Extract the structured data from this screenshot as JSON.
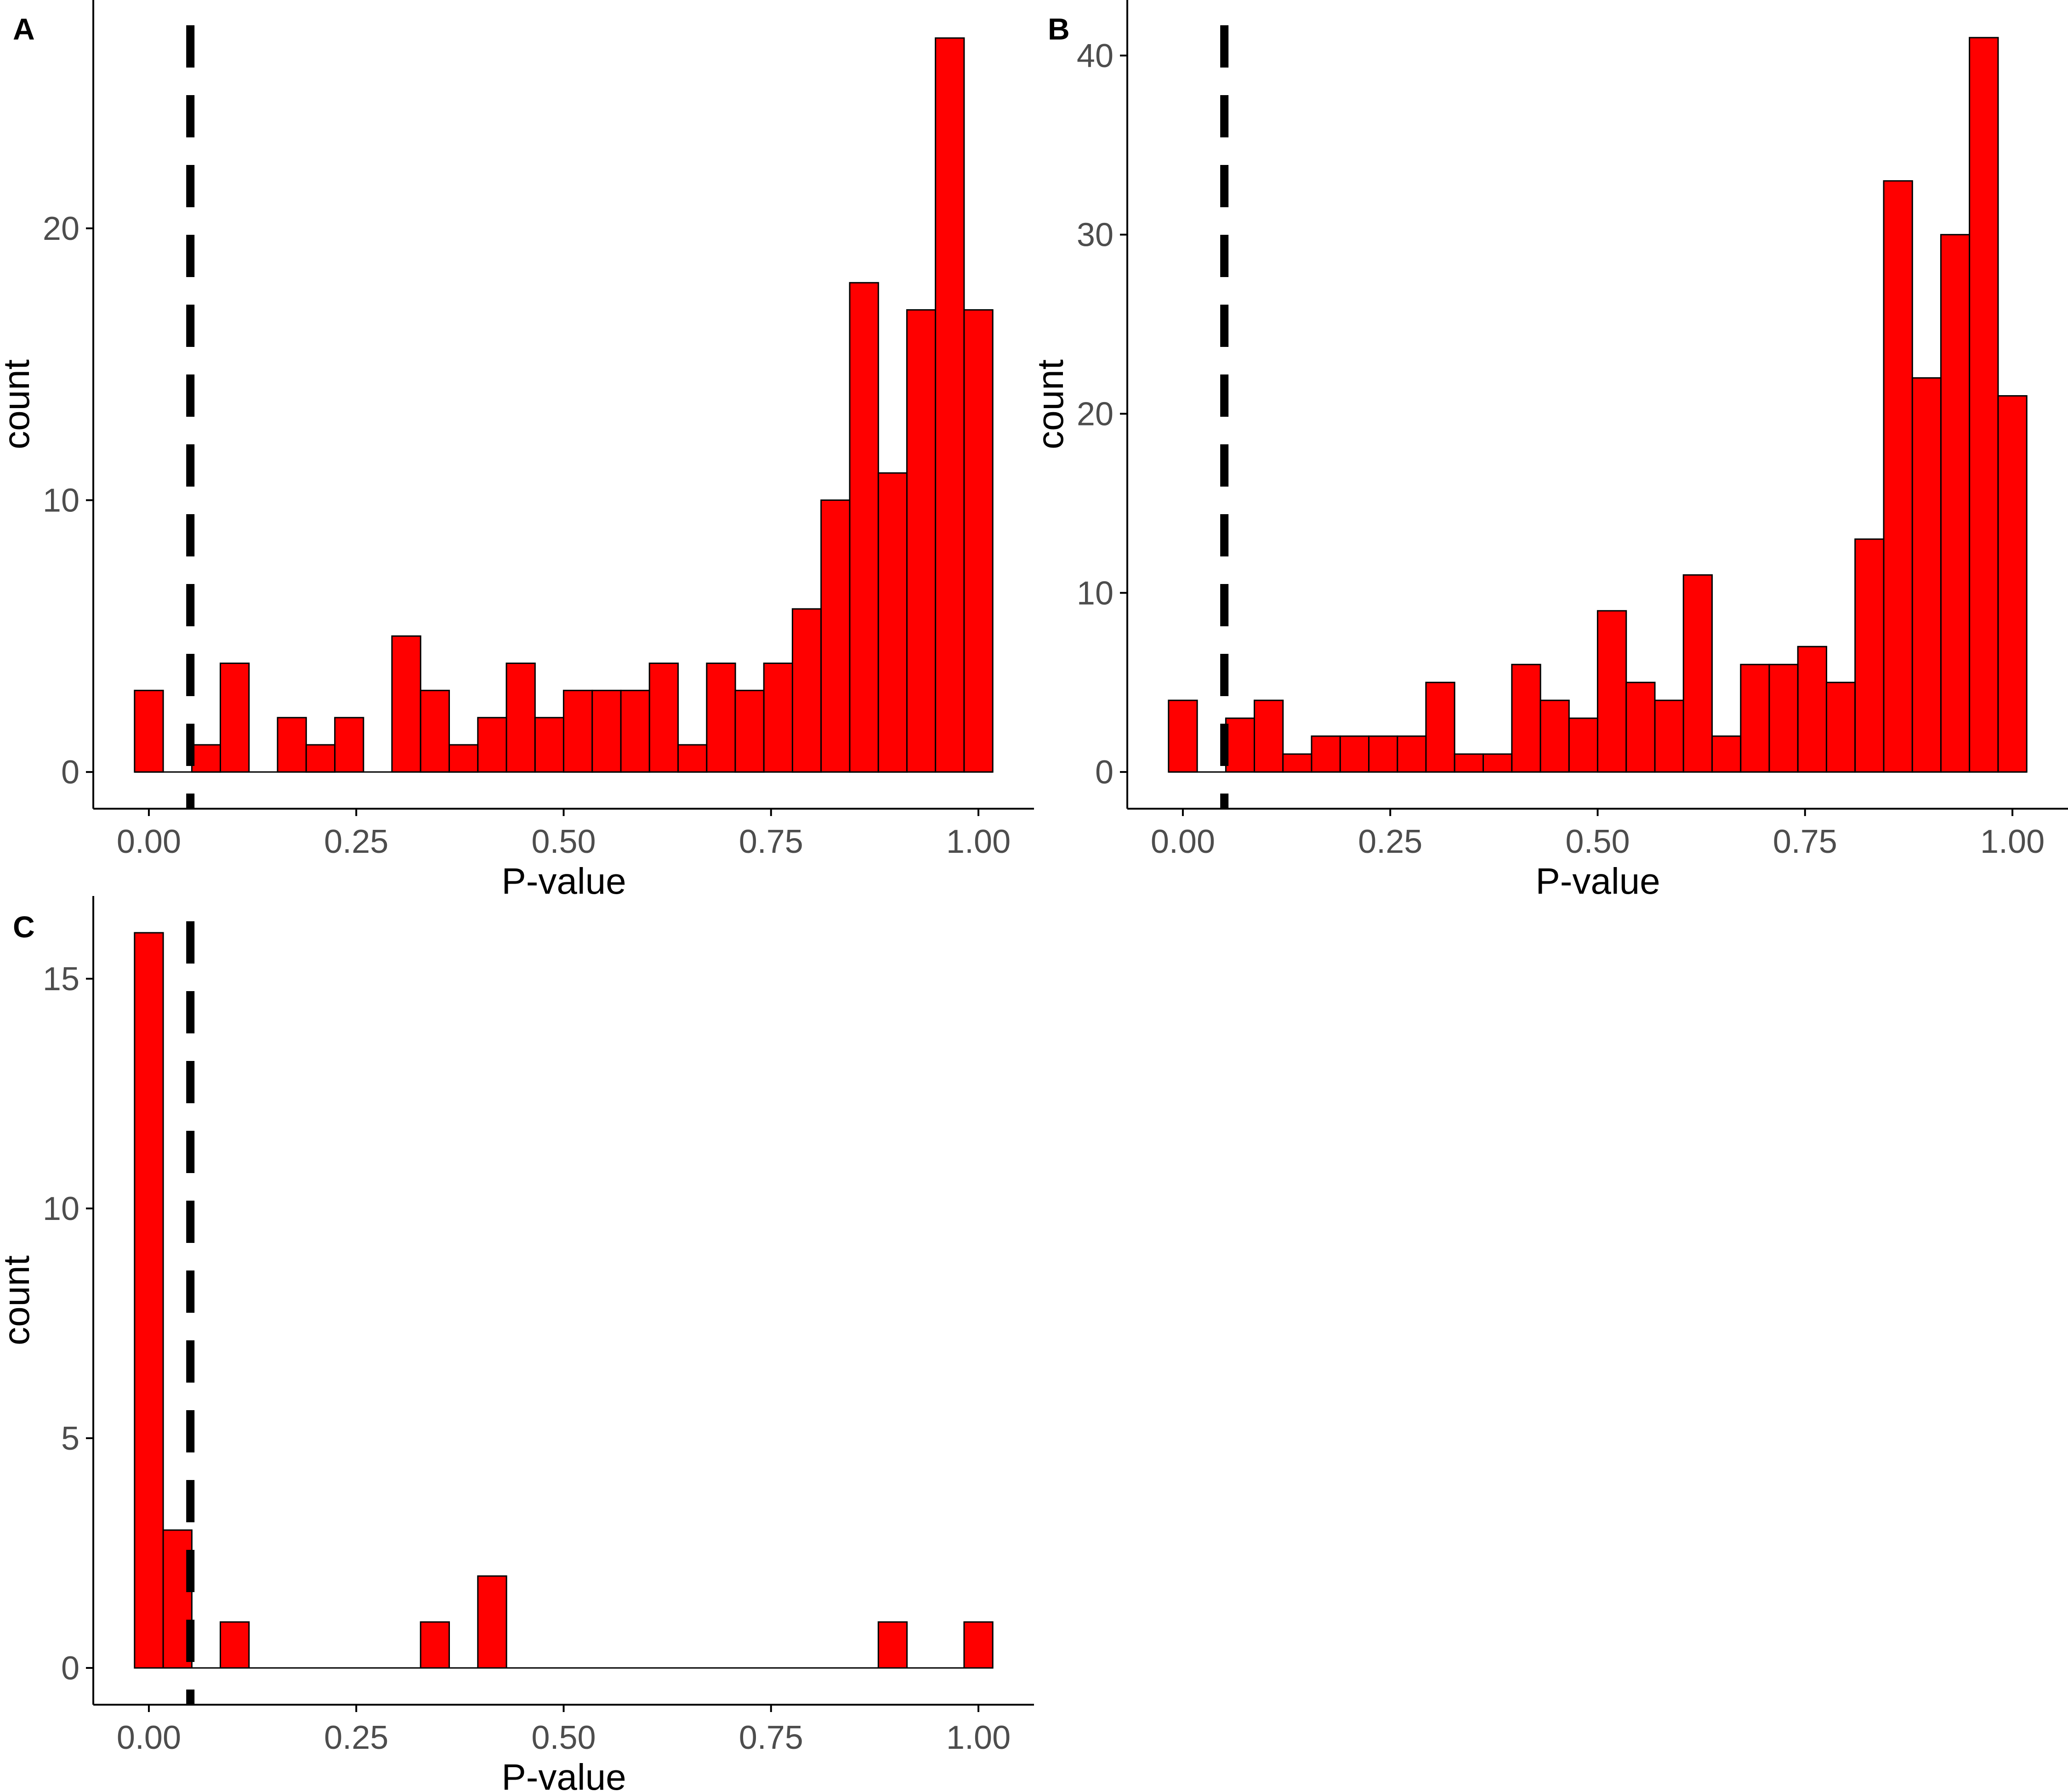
{
  "figure": {
    "colors": {
      "bar_fill": "#ff0000",
      "bar_stroke": "#000000",
      "axis": "#000000",
      "tick_text": "#4d4d4d",
      "reference_line": "#000000"
    }
  },
  "chart_data": [
    {
      "panel": "A",
      "type": "bar",
      "subtype": "histogram",
      "xlabel": "P-value",
      "ylabel": "count",
      "bin_width": 0.0345,
      "bin_centers": [
        0.0,
        0.0345,
        0.069,
        0.1034,
        0.1379,
        0.1724,
        0.2069,
        0.2414,
        0.2759,
        0.3103,
        0.3448,
        0.3793,
        0.4138,
        0.4483,
        0.4828,
        0.5172,
        0.5517,
        0.5862,
        0.6207,
        0.6552,
        0.6897,
        0.7241,
        0.7586,
        0.7931,
        0.8276,
        0.8621,
        0.8966,
        0.931,
        0.9655,
        1.0
      ],
      "values": [
        3,
        0,
        1,
        4,
        0,
        2,
        1,
        2,
        0,
        5,
        3,
        1,
        2,
        4,
        2,
        3,
        3,
        3,
        4,
        1,
        4,
        3,
        4,
        6,
        10,
        18,
        11,
        17,
        27,
        17
      ],
      "xlim": [
        -0.067,
        1.067
      ],
      "ylim": [
        -1.35,
        28.4
      ],
      "xticks": [
        0,
        0.25,
        0.5,
        0.75,
        1
      ],
      "xtick_labels": [
        "0.00",
        "0.25",
        "0.50",
        "0.75",
        "1.00"
      ],
      "yticks": [
        0,
        10,
        20
      ],
      "ytick_labels": [
        "0",
        "10",
        "20"
      ],
      "reference_line": {
        "x": 0.05,
        "style": "dashed"
      }
    },
    {
      "panel": "B",
      "type": "bar",
      "subtype": "histogram",
      "xlabel": "P-value",
      "ylabel": "count",
      "bin_width": 0.0345,
      "bin_centers": [
        0.0,
        0.0345,
        0.069,
        0.1034,
        0.1379,
        0.1724,
        0.2069,
        0.2414,
        0.2759,
        0.3103,
        0.3448,
        0.3793,
        0.4138,
        0.4483,
        0.4828,
        0.5172,
        0.5517,
        0.5862,
        0.6207,
        0.6552,
        0.6897,
        0.7241,
        0.7586,
        0.7931,
        0.8276,
        0.8621,
        0.8966,
        0.931,
        0.9655,
        1.0
      ],
      "values": [
        4,
        0,
        3,
        4,
        1,
        2,
        2,
        2,
        2,
        5,
        1,
        1,
        6,
        4,
        3,
        9,
        5,
        4,
        11,
        2,
        6,
        6,
        7,
        5,
        13,
        33,
        22,
        30,
        41,
        21
      ],
      "xlim": [
        -0.067,
        1.067
      ],
      "ylim": [
        -2.05,
        43.1
      ],
      "xticks": [
        0,
        0.25,
        0.5,
        0.75,
        1
      ],
      "xtick_labels": [
        "0.00",
        "0.25",
        "0.50",
        "0.75",
        "1.00"
      ],
      "yticks": [
        0,
        10,
        20,
        30,
        40
      ],
      "ytick_labels": [
        "0",
        "10",
        "20",
        "30",
        "40"
      ],
      "reference_line": {
        "x": 0.05,
        "style": "dashed"
      }
    },
    {
      "panel": "C",
      "type": "bar",
      "subtype": "histogram",
      "xlabel": "P-value",
      "ylabel": "count",
      "bin_width": 0.0345,
      "bin_centers": [
        0.0,
        0.0345,
        0.069,
        0.1034,
        0.1379,
        0.1724,
        0.2069,
        0.2414,
        0.2759,
        0.3103,
        0.3448,
        0.3793,
        0.4138,
        0.4483,
        0.4828,
        0.5172,
        0.5517,
        0.5862,
        0.6207,
        0.6552,
        0.6897,
        0.7241,
        0.7586,
        0.7931,
        0.8276,
        0.8621,
        0.8966,
        0.931,
        0.9655,
        1.0
      ],
      "values": [
        16,
        3,
        0,
        1,
        0,
        0,
        0,
        0,
        0,
        0,
        1,
        0,
        2,
        0,
        0,
        0,
        0,
        0,
        0,
        0,
        0,
        0,
        0,
        0,
        0,
        0,
        1,
        0,
        0,
        1
      ],
      "xlim": [
        -0.067,
        1.067
      ],
      "ylim": [
        -0.8,
        16.8
      ],
      "xticks": [
        0,
        0.25,
        0.5,
        0.75,
        1
      ],
      "xtick_labels": [
        "0.00",
        "0.25",
        "0.50",
        "0.75",
        "1.00"
      ],
      "yticks": [
        0,
        5,
        10,
        15
      ],
      "ytick_labels": [
        "0",
        "5",
        "10",
        "15"
      ],
      "reference_line": {
        "x": 0.05,
        "style": "dashed"
      }
    }
  ]
}
